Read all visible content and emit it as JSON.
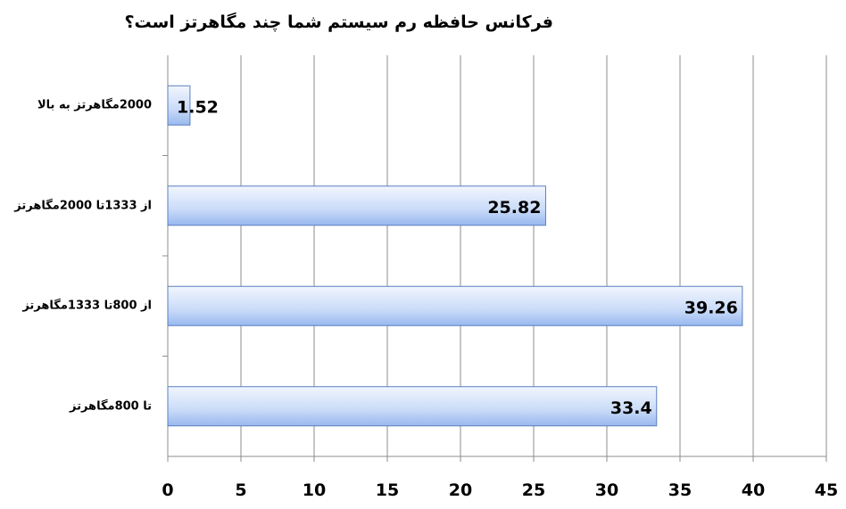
{
  "chart_data": {
    "type": "bar",
    "orientation": "horizontal",
    "title": "فرکانس حافظه رم سیستم شما چند مگاهرتز است؟",
    "categories": [
      "2000مگاهرتز به بالا",
      "از 1333تا 2000مگاهرتز",
      "از 800تا 1333مگاهرتز",
      "تا 800مگاهرتز"
    ],
    "values": [
      1.52,
      25.82,
      39.26,
      33.4
    ],
    "data_labels": [
      "1.52",
      "25.82",
      "39.26",
      "33.4"
    ],
    "xlim": [
      0,
      45
    ],
    "xticks": [
      "0",
      "5",
      "10",
      "15",
      "20",
      "25",
      "30",
      "35",
      "40",
      "45"
    ],
    "grid": "vertical",
    "bar_color": "#a9c4f5",
    "xlabel": "",
    "ylabel": ""
  }
}
